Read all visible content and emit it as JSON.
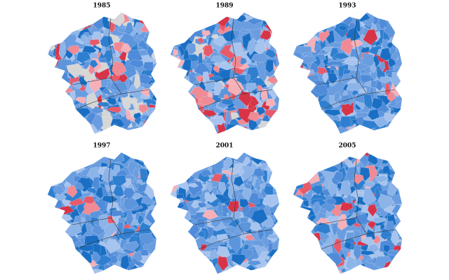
{
  "maps": [
    {
      "title": "1985"
    },
    {
      "title": "1989"
    },
    {
      "title": "1993"
    },
    {
      "title": "1997"
    },
    {
      "title": "2001"
    },
    {
      "title": "2005"
    }
  ]
}
